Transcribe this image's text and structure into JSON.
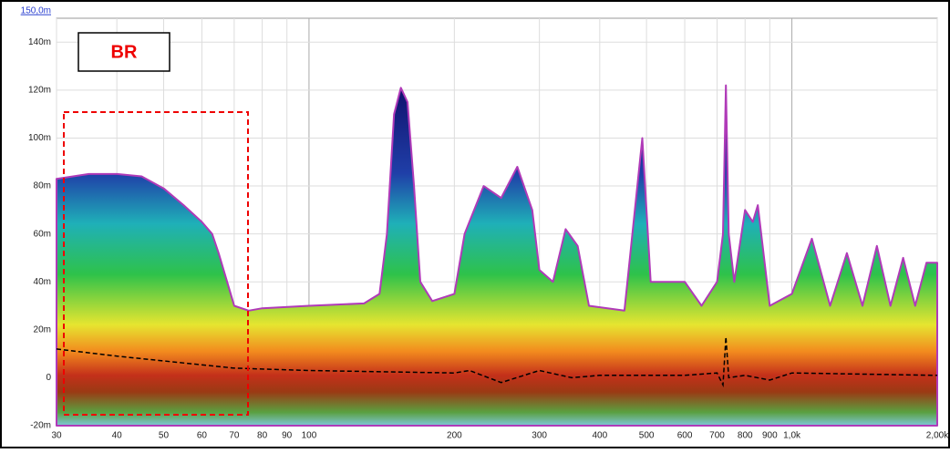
{
  "chart_data": {
    "type": "area",
    "annotation": "BR",
    "xscale": "log",
    "grid": true,
    "xlim": [
      30,
      2000
    ],
    "ylim": [
      -20,
      150
    ],
    "xticks": [
      30,
      40,
      50,
      60,
      70,
      80,
      90,
      100,
      200,
      300,
      400,
      500,
      600,
      700,
      800,
      900,
      {
        "value": 1000,
        "label": "1,0k"
      },
      {
        "value": 2000,
        "label": "2,00k"
      }
    ],
    "yticks": [
      {
        "value": -20,
        "label": "-20m"
      },
      0,
      {
        "value": 20,
        "label": "20m"
      },
      {
        "value": 40,
        "label": "40m"
      },
      {
        "value": 60,
        "label": "60m"
      },
      {
        "value": 80,
        "label": "80m"
      },
      {
        "value": 100,
        "label": "100m"
      },
      {
        "value": 120,
        "label": "120m"
      },
      {
        "value": 140,
        "label": "140m"
      },
      {
        "value": 150,
        "label": "150,0m"
      }
    ],
    "series": [
      {
        "color": "#1c1c8a",
        "x": [
          30,
          35,
          40,
          45,
          50,
          55,
          60,
          63,
          65,
          70,
          75,
          80,
          100,
          130,
          140,
          145,
          150,
          155,
          160,
          165,
          170,
          180,
          200,
          210,
          230,
          250,
          270,
          290,
          300,
          320,
          340,
          360,
          380,
          450,
          490,
          510,
          600,
          650,
          700,
          720,
          730,
          740,
          760,
          800,
          830,
          850,
          900,
          1000,
          1100,
          1200,
          1300,
          1400,
          1500,
          1600,
          1700,
          1800,
          1900,
          2000
        ],
        "values": [
          83,
          85,
          85,
          84,
          79,
          72,
          65,
          60,
          52,
          30,
          28,
          29,
          30,
          31,
          35,
          60,
          110,
          121,
          115,
          80,
          40,
          32,
          35,
          60,
          80,
          75,
          88,
          70,
          45,
          40,
          62,
          55,
          30,
          28,
          100,
          40,
          40,
          30,
          40,
          60,
          122,
          60,
          40,
          70,
          65,
          72,
          30,
          35,
          58,
          30,
          52,
          30,
          55,
          30,
          50,
          30,
          48,
          48
        ]
      },
      {
        "color": "#000000",
        "style": "dashed",
        "x": [
          30,
          40,
          50,
          70,
          100,
          200,
          215,
          250,
          300,
          350,
          400,
          600,
          700,
          720,
          730,
          740,
          800,
          900,
          1000,
          2000
        ],
        "values": [
          12,
          9,
          7,
          4,
          3,
          2,
          3,
          -2,
          3,
          0,
          1,
          1,
          2,
          -3,
          17,
          0,
          1,
          -1,
          2,
          1
        ]
      }
    ]
  }
}
